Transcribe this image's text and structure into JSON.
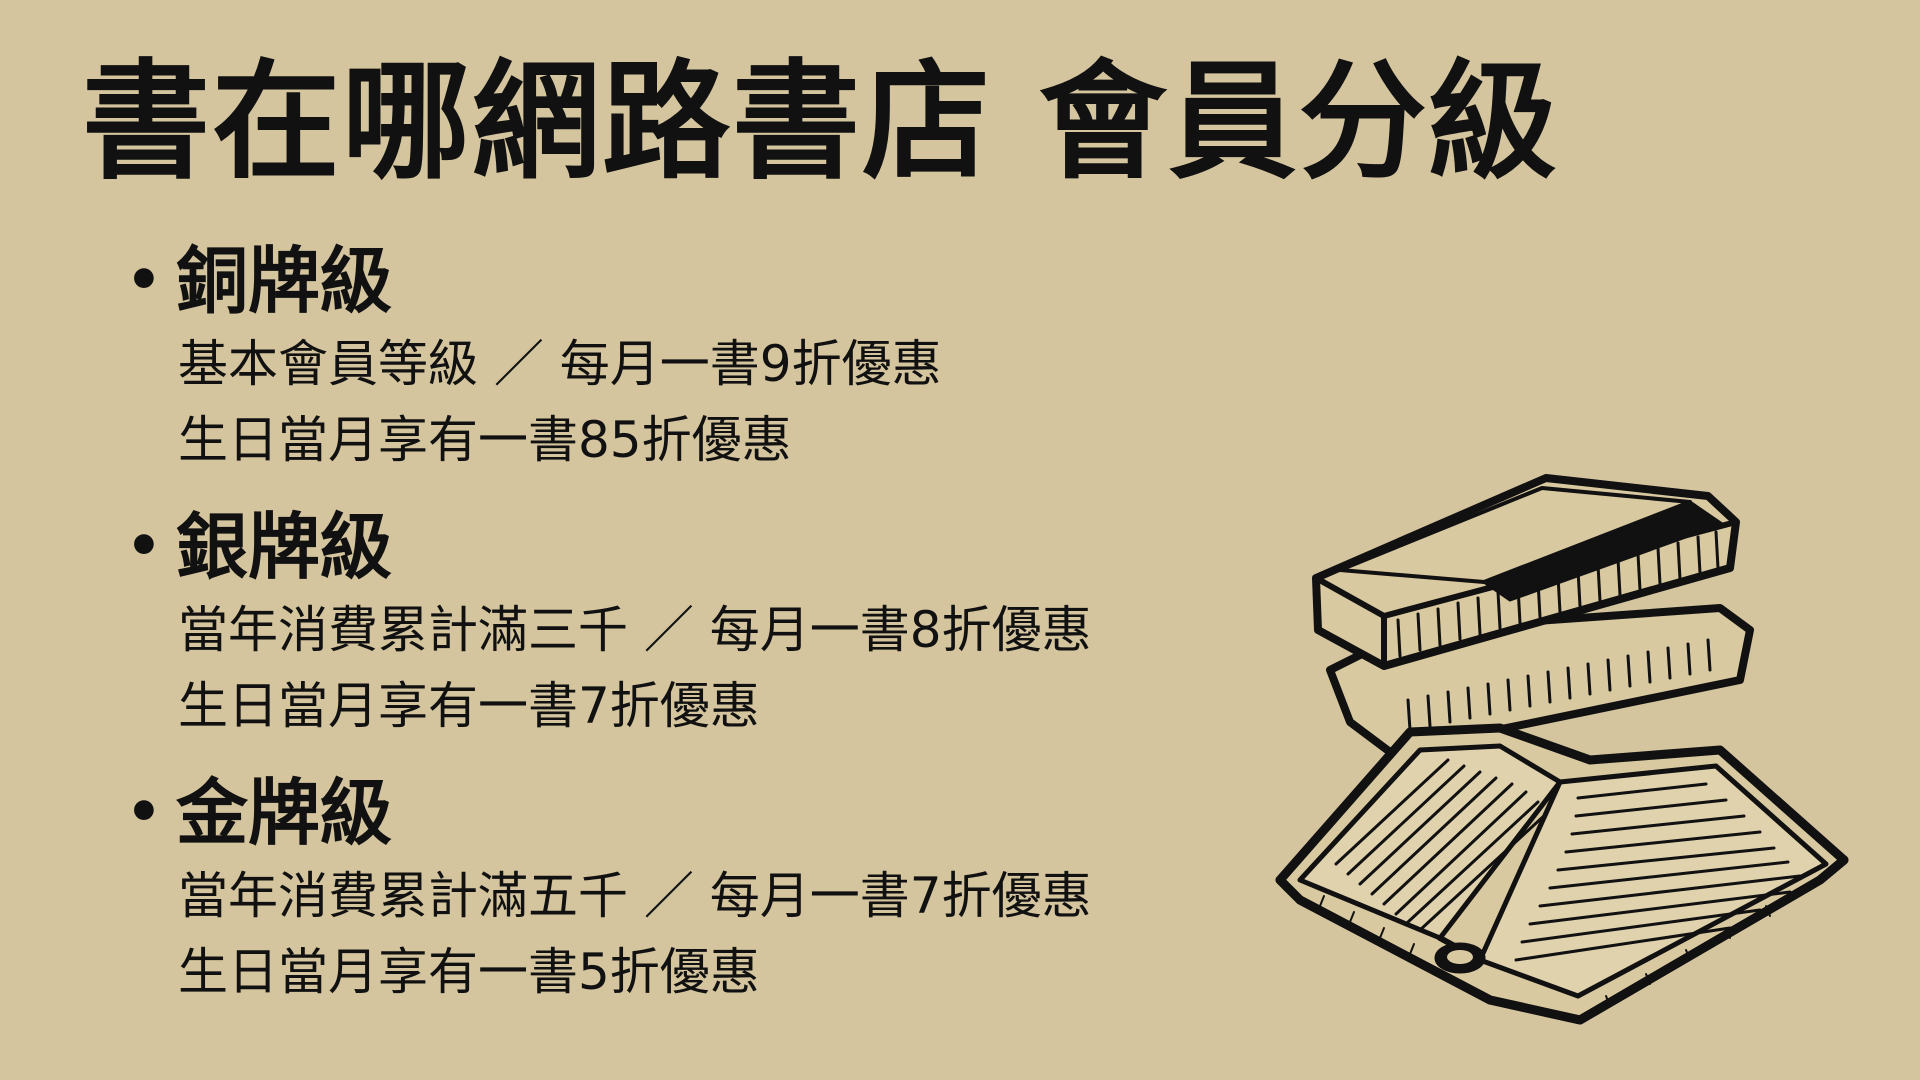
{
  "page": {
    "title": "書在哪網路書店 會員分級"
  },
  "tiers": [
    {
      "name": "銅牌級",
      "line1": "基本會員等級 ／ 每月一書9折優惠",
      "line2": "生日當月享有一書85折優惠"
    },
    {
      "name": "銀牌級",
      "line1": "當年消費累計滿三千 ／ 每月一書8折優惠",
      "line2": "生日當月享有一書7折優惠"
    },
    {
      "name": "金牌級",
      "line1": "當年消費累計滿五千 ／ 每月一書7折優惠",
      "line2": "生日當月享有一書5折優惠"
    }
  ],
  "bullet": "•",
  "colors": {
    "background": "#d4c59e",
    "text": "#111111",
    "book_fill": "#d9c9a0"
  },
  "icons": {
    "illustration": "stacked-books-illustration"
  }
}
